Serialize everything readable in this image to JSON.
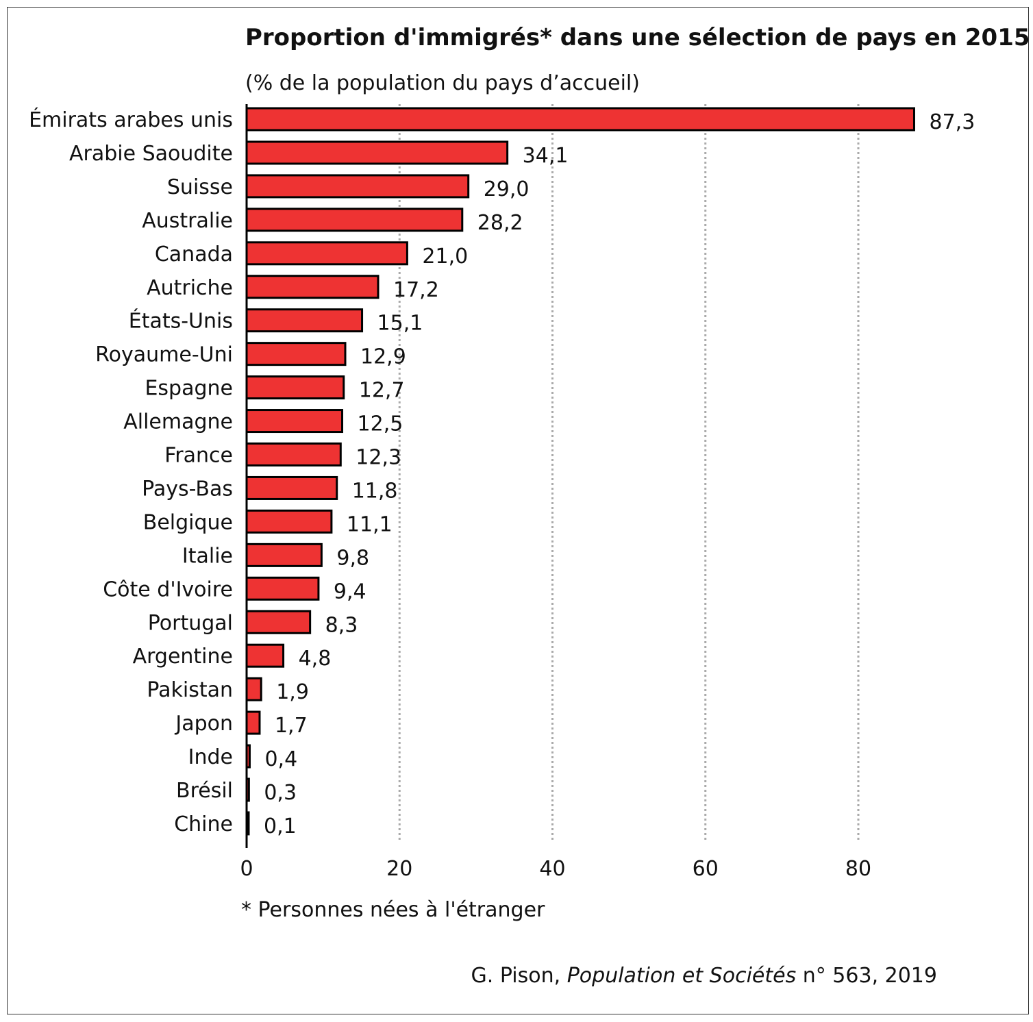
{
  "chart_data": {
    "type": "bar",
    "orientation": "horizontal",
    "title": "Proportion d'immigrés* dans une sélection de pays en 2015",
    "subtitle": "(% de la population du pays d’accueil)",
    "categories": [
      "Émirats arabes unis",
      "Arabie Saoudite",
      "Suisse",
      "Australie",
      "Canada",
      "Autriche",
      "États-Unis",
      "Royaume-Uni",
      "Espagne",
      "Allemagne",
      "France",
      "Pays-Bas",
      "Belgique",
      "Italie",
      "Côte d'Ivoire",
      "Portugal",
      "Argentine",
      "Pakistan",
      "Japon",
      "Inde",
      "Brésil",
      "Chine"
    ],
    "values": [
      87.3,
      34.1,
      29.0,
      28.2,
      21.0,
      17.2,
      15.1,
      12.9,
      12.7,
      12.5,
      12.3,
      11.8,
      11.1,
      9.8,
      9.4,
      8.3,
      4.8,
      1.9,
      1.7,
      0.4,
      0.3,
      0.1
    ],
    "value_labels": [
      "87,3",
      "34,1",
      "29,0",
      "28,2",
      "21,0",
      "17,2",
      "15,1",
      "12,9",
      "12,7",
      "12,5",
      "12,3",
      "11,8",
      "11,1",
      "9,8",
      "9,4",
      "8,3",
      "4,8",
      "1,9",
      "1,7",
      "0,4",
      "0,3",
      "0,1"
    ],
    "xlim": [
      0,
      90
    ],
    "xticks": [
      0,
      20,
      40,
      60,
      80
    ],
    "xtick_labels": [
      "0",
      "20",
      "40",
      "60",
      "80"
    ],
    "grid": "vertical dotted",
    "bar_color": "#ee3333",
    "footnote": "* Personnes nées à l'étranger",
    "source_prefix": "G. Pison, ",
    "source_italic": "Population et Sociétés",
    "source_suffix": " n° 563, 2019"
  }
}
